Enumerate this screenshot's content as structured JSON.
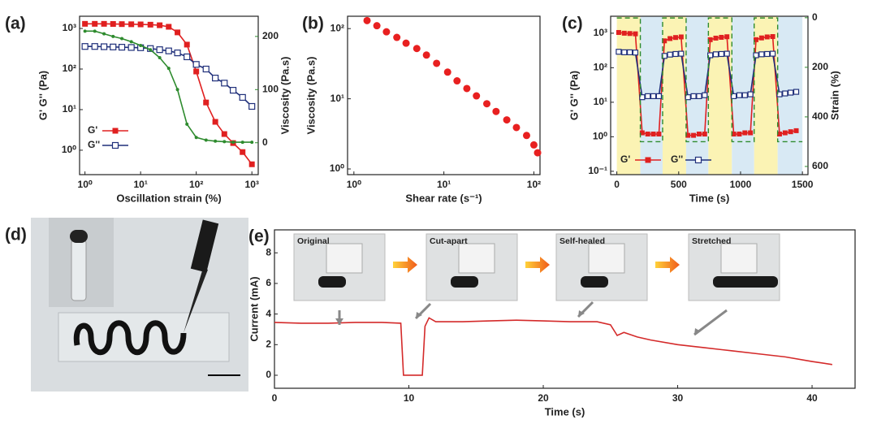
{
  "chart_data": [
    {
      "type": "line",
      "label": "(a)",
      "xlabel": "Oscillation strain (%)",
      "ylabel": "G'   G'' (Pa)",
      "y2label": "Viscosity (Pa.s)",
      "y2color": "#2e8b2e",
      "xscale": "log",
      "yscale": "log",
      "xlim": [
        0.8,
        1300
      ],
      "ylim": [
        0.25,
        2000
      ],
      "y2lim": [
        -60,
        238
      ],
      "xticks": [
        {
          "value": 1,
          "label": "10⁰"
        },
        {
          "value": 10,
          "label": "10¹"
        },
        {
          "value": 100,
          "label": "10²"
        },
        {
          "value": 1000,
          "label": "10³"
        }
      ],
      "yticks": [
        {
          "value": 1,
          "label": "10⁰"
        },
        {
          "value": 10,
          "label": "10¹"
        },
        {
          "value": 100,
          "label": "10²"
        },
        {
          "value": 1000,
          "label": "10³"
        }
      ],
      "y2ticks": [
        0,
        100,
        200
      ],
      "legend": "lower left",
      "x": [
        1,
        1.5,
        2.2,
        3.2,
        4.6,
        6.8,
        10,
        15,
        22,
        32,
        46,
        68,
        100,
        150,
        220,
        320,
        460,
        680,
        1000
      ],
      "series": [
        {
          "name": "G'",
          "color": "#e02020",
          "marker": "square",
          "values": [
            1300,
            1300,
            1300,
            1290,
            1280,
            1270,
            1260,
            1240,
            1200,
            1100,
            800,
            400,
            87,
            15,
            5,
            2.5,
            1.5,
            0.9,
            0.45
          ]
        },
        {
          "name": "G''",
          "color": "#1f2f7a",
          "marker": "open-square",
          "values": [
            360,
            360,
            355,
            350,
            345,
            340,
            335,
            320,
            300,
            280,
            250,
            200,
            130,
            100,
            60,
            45,
            30,
            20,
            12
          ]
        },
        {
          "color": "#2e8b2e",
          "marker": "dot",
          "axis": "y2",
          "values": [
            210,
            210,
            205,
            200,
            196,
            190,
            183,
            175,
            160,
            140,
            100,
            35,
            10,
            5,
            3,
            2,
            1,
            1,
            1
          ]
        }
      ]
    },
    {
      "type": "scatter",
      "label": "(b)",
      "xlabel": "Shear rate (s⁻¹)",
      "ylabel": "Viscosity (Pa.s)",
      "xscale": "log",
      "yscale": "log",
      "xlim": [
        0.85,
        117
      ],
      "ylim": [
        0.83,
        150
      ],
      "xticks": [
        {
          "value": 1,
          "label": "10⁰"
        },
        {
          "value": 10,
          "label": "10¹"
        },
        {
          "value": 100,
          "label": "10²"
        }
      ],
      "yticks": [
        {
          "value": 1,
          "label": "10⁰"
        },
        {
          "value": 10,
          "label": "10¹"
        },
        {
          "value": 100,
          "label": "10²"
        }
      ],
      "x": [
        1.4,
        1.8,
        2.3,
        3,
        3.8,
        5,
        6.4,
        8.3,
        11,
        14,
        18,
        23,
        30,
        38,
        50,
        64,
        83,
        100,
        110
      ],
      "series": [
        {
          "color": "#e82020",
          "marker": "dot",
          "values": [
            130,
            110,
            90,
            75,
            62,
            52,
            42,
            32,
            24,
            18,
            14,
            11,
            8.5,
            6.6,
            5,
            3.9,
            3,
            2.2,
            1.7
          ]
        }
      ]
    },
    {
      "type": "line",
      "label": "(c)",
      "xlabel": "Time (s)",
      "ylabel": "G'   G'' (Pa)",
      "y2label": "Strain (%)",
      "y2color": "#2e8b2e",
      "yscale": "log",
      "xlim": [
        -50,
        1545
      ],
      "ylim": [
        0.08,
        3100
      ],
      "y2lim": [
        633,
        -6
      ],
      "xticks": [
        0,
        500,
        1000,
        1500
      ],
      "yticks": [
        {
          "value": 0.1,
          "label": "10⁻¹"
        },
        {
          "value": 1,
          "label": "10⁰"
        },
        {
          "value": 10,
          "label": "10¹"
        },
        {
          "value": 100,
          "label": "10²"
        },
        {
          "value": 1000,
          "label": "10³"
        }
      ],
      "y2ticks": [
        0,
        200,
        400,
        600
      ],
      "legend": "lower left",
      "band_colors": [
        "#fbf3b4",
        "#d8e9f4"
      ],
      "series": [
        {
          "name": "G'",
          "color": "#e02020",
          "marker": "square",
          "x": [
            15,
            60,
            105,
            150,
            205,
            250,
            295,
            340,
            385,
            430,
            475,
            520,
            575,
            620,
            665,
            710,
            755,
            800,
            845,
            890,
            945,
            990,
            1035,
            1080,
            1125,
            1170,
            1215,
            1260,
            1315,
            1360,
            1405,
            1450
          ],
          "values": [
            1050,
            1000,
            980,
            960,
            1.3,
            1.2,
            1.2,
            1.2,
            600,
            700,
            750,
            780,
            1.1,
            1.1,
            1.2,
            1.2,
            650,
            720,
            760,
            790,
            1.2,
            1.2,
            1.3,
            1.3,
            650,
            730,
            780,
            800,
            1.2,
            1.3,
            1.4,
            1.5
          ]
        },
        {
          "name": "G''",
          "color": "#1f2f7a",
          "marker": "open-square",
          "x": [
            15,
            60,
            105,
            150,
            205,
            250,
            295,
            340,
            385,
            430,
            475,
            520,
            575,
            620,
            665,
            710,
            755,
            800,
            845,
            890,
            945,
            990,
            1035,
            1080,
            1125,
            1170,
            1215,
            1260,
            1315,
            1360,
            1405,
            1450
          ],
          "values": [
            290,
            280,
            280,
            275,
            14,
            15,
            15,
            15,
            220,
            240,
            250,
            255,
            14,
            15,
            15,
            16,
            230,
            245,
            250,
            255,
            15,
            16,
            16,
            17,
            230,
            245,
            250,
            255,
            17,
            18,
            19,
            20
          ]
        },
        {
          "color": "#2e8b2e",
          "dash": true,
          "axis": "y2",
          "bands": true,
          "x": [
            0,
            190,
            190,
            370,
            370,
            560,
            560,
            740,
            740,
            930,
            930,
            1110,
            1110,
            1300,
            1300,
            1500
          ],
          "values": [
            1,
            1,
            500,
            500,
            1,
            1,
            500,
            500,
            1,
            1,
            500,
            500,
            1,
            1,
            500,
            500
          ]
        }
      ]
    },
    {
      "type": "line",
      "label": "(e)",
      "xlabel": "Time (s)",
      "ylabel": "Current (mA)",
      "xlim": [
        0,
        43.2
      ],
      "ylim": [
        -0.85,
        9.5
      ],
      "xticks": [
        0,
        10,
        20,
        30,
        40
      ],
      "yticks": [
        0,
        2,
        4,
        6,
        8
      ],
      "annotations": [
        "Original",
        "Cut-apart",
        "Self-healed",
        "Stretched"
      ],
      "x": [
        0,
        2,
        4,
        6,
        8,
        9.4,
        9.6,
        10,
        11,
        11.2,
        11.5,
        12,
        14,
        16,
        18,
        20,
        22,
        24,
        25,
        25.5,
        26,
        27,
        28,
        30,
        32,
        34,
        36,
        38,
        40,
        41.5
      ],
      "series": [
        {
          "color": "#d42a2a",
          "values": [
            3.45,
            3.4,
            3.4,
            3.45,
            3.45,
            3.4,
            0,
            0,
            0,
            3.2,
            3.75,
            3.5,
            3.5,
            3.55,
            3.6,
            3.55,
            3.5,
            3.5,
            3.3,
            2.6,
            2.8,
            2.5,
            2.3,
            2.0,
            1.8,
            1.6,
            1.4,
            1.2,
            0.9,
            0.7
          ]
        }
      ]
    }
  ],
  "photo": {
    "label": "(d)"
  }
}
